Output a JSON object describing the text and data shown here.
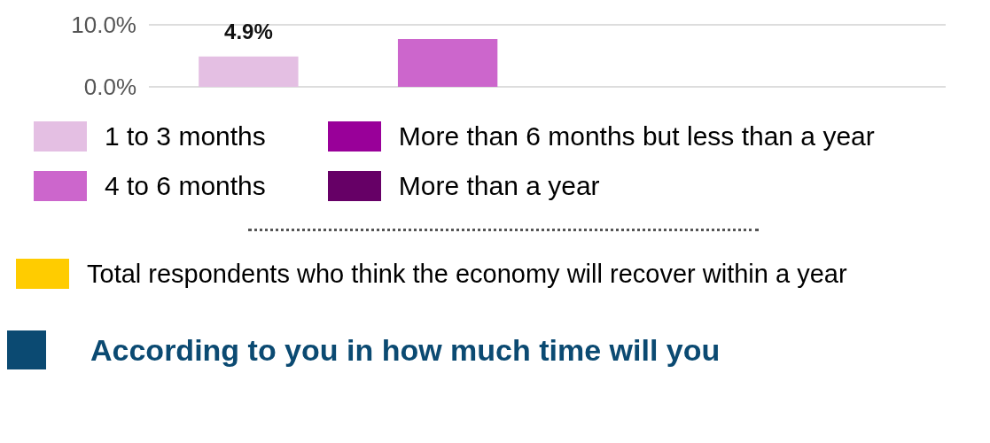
{
  "chart_data": {
    "type": "bar",
    "categories": [
      null,
      null,
      null,
      null
    ],
    "series": [
      {
        "name": "1 to 3 months",
        "color": "#e4bfe3",
        "values": [
          4.9,
          null,
          null,
          null
        ],
        "value_labels": [
          "4.9%",
          null,
          null,
          null
        ]
      },
      {
        "name": "4 to 6 months",
        "color": "#cc66cc",
        "values": [
          null,
          7.7,
          null,
          null
        ]
      },
      {
        "name": "More than 6 months but less than a year",
        "color": "#990099",
        "values": [
          null,
          null,
          null,
          null
        ]
      },
      {
        "name": "More than a year",
        "color": "#660066",
        "values": [
          null,
          null,
          null,
          null
        ]
      },
      {
        "name": "Total respondents who think the economy will recover within a year",
        "color": "#ffcc00",
        "type": "line",
        "values": [
          null,
          null,
          null,
          null
        ]
      }
    ],
    "ylim": [
      0,
      10
    ],
    "yticks": [
      {
        "value": 0,
        "label": "0.0%"
      },
      {
        "value": 10,
        "label": "10.0%"
      }
    ],
    "grid": "y",
    "legend": "bottom",
    "annotations": [
      "According to you in how much time will you"
    ]
  }
}
